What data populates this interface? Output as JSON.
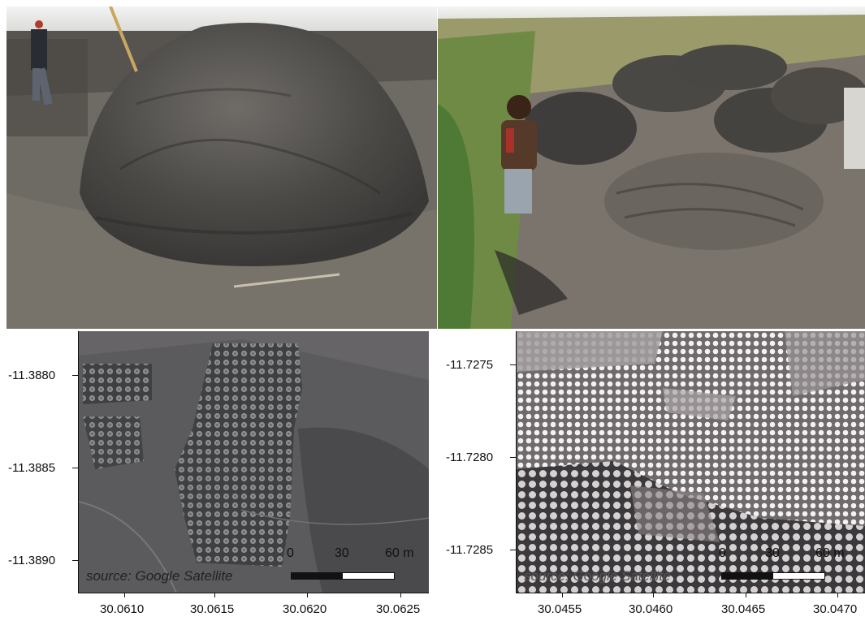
{
  "photos": [
    {
      "subject": "large soil mound with men walking beside"
    },
    {
      "subject": "child standing near several soil mounds in field"
    }
  ],
  "maps": [
    {
      "source_text": "source: Google Satellite",
      "scale": {
        "zero": "0",
        "mid": "30",
        "end": "60 m"
      },
      "y_ticks": [
        "-11.3880",
        "-11.3885",
        "-11.3890"
      ],
      "x_ticks": [
        "30.0610",
        "30.0615",
        "30.0620",
        "30.0625"
      ]
    },
    {
      "source_text": "source: Google Satellite",
      "scale": {
        "zero": "0",
        "mid": "30",
        "end": "60 m"
      },
      "y_ticks": [
        "-11.7275",
        "-11.7280",
        "-11.7285"
      ],
      "x_ticks": [
        "30.0455",
        "30.0460",
        "30.0465",
        "30.0470"
      ]
    }
  ]
}
